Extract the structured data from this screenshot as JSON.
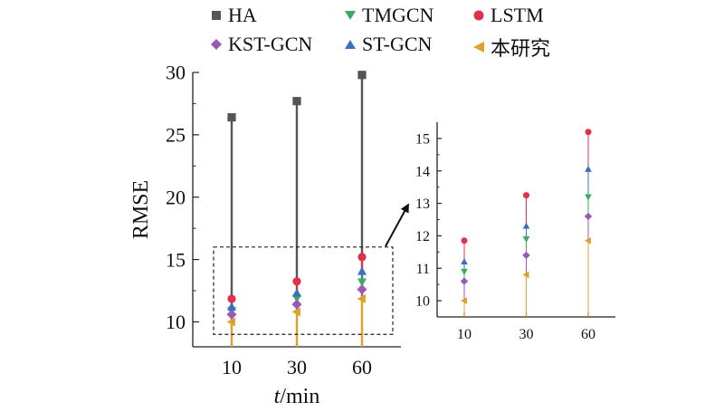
{
  "legend": [
    {
      "key": "HA",
      "label": "HA",
      "color": "#555555",
      "marker": "square"
    },
    {
      "key": "TMGCN",
      "label": "TMGCN",
      "color": "#3daa5e",
      "marker": "triangle-down"
    },
    {
      "key": "LSTM",
      "label": "LSTM",
      "color": "#e0304a",
      "marker": "circle"
    },
    {
      "key": "KST-GCN",
      "label": "KST-GCN",
      "color": "#9b59b6",
      "marker": "diamond"
    },
    {
      "key": "ST-GCN",
      "label": "ST-GCN",
      "color": "#3b6fc4",
      "marker": "triangle-up"
    },
    {
      "key": "OURS",
      "label": "本研究",
      "color": "#e0a02a",
      "marker": "triangle-left"
    }
  ],
  "chart_data": [
    {
      "type": "scatter",
      "categories": [
        "10",
        "30",
        "60"
      ],
      "xlabel_italic": "t",
      "xlabel_rest": "/min",
      "ylabel": "RMSE",
      "ylim": [
        8,
        30
      ],
      "yticks": [
        10,
        15,
        20,
        25,
        30
      ],
      "series": [
        {
          "name": "HA",
          "values": [
            26.4,
            27.7,
            29.8
          ]
        },
        {
          "name": "TMGCN",
          "values": [
            10.9,
            11.9,
            13.2
          ]
        },
        {
          "name": "LSTM",
          "values": [
            11.85,
            13.25,
            15.2
          ]
        },
        {
          "name": "KST-GCN",
          "values": [
            10.6,
            11.4,
            12.6
          ]
        },
        {
          "name": "ST-GCN",
          "values": [
            11.2,
            12.3,
            14.05
          ]
        },
        {
          "name": "本研究",
          "values": [
            10.0,
            10.8,
            11.85
          ]
        }
      ],
      "zoom_box_ylim": [
        9,
        16
      ]
    },
    {
      "type": "scatter",
      "categories": [
        "10",
        "30",
        "60"
      ],
      "ylim": [
        9.5,
        15.5
      ],
      "yticks": [
        10,
        11,
        12,
        13,
        14,
        15
      ],
      "series": [
        {
          "name": "TMGCN",
          "values": [
            10.9,
            11.9,
            13.2
          ]
        },
        {
          "name": "LSTM",
          "values": [
            11.85,
            13.25,
            15.2
          ]
        },
        {
          "name": "KST-GCN",
          "values": [
            10.6,
            11.4,
            12.6
          ]
        },
        {
          "name": "ST-GCN",
          "values": [
            11.2,
            12.3,
            14.05
          ]
        },
        {
          "name": "本研究",
          "values": [
            10.0,
            10.8,
            11.85
          ]
        }
      ]
    }
  ]
}
